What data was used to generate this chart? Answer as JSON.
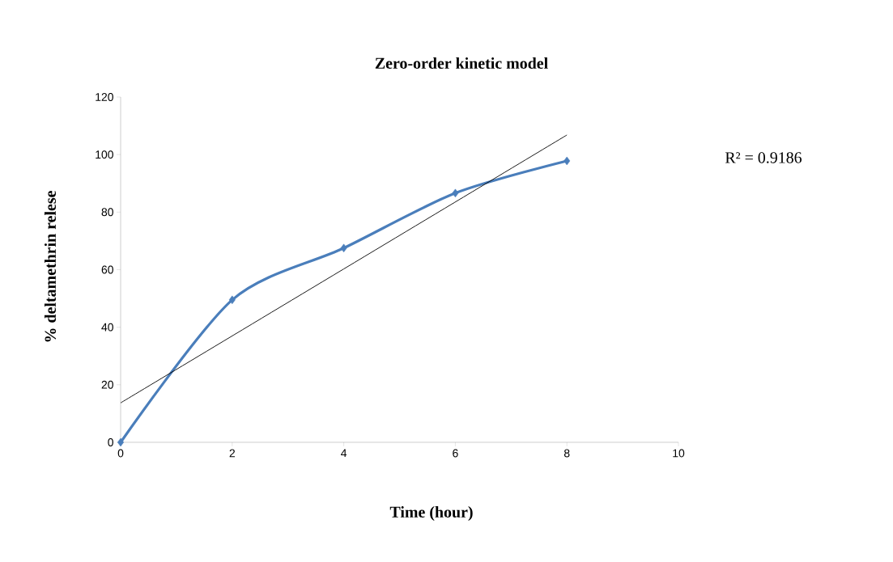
{
  "chart_data": {
    "type": "line",
    "title": "Zero-order  kinetic model",
    "xlabel": "Time (hour)",
    "ylabel": "% deltamethrin relese",
    "x": [
      0,
      2,
      4,
      6,
      8
    ],
    "series": [
      {
        "color": "#4a7ebb",
        "values": [
          0,
          49.5,
          67.5,
          86.6,
          97.8
        ],
        "marker": "diamond"
      },
      {
        "type": "line",
        "color": "#000000",
        "x": [
          0,
          8
        ],
        "values": [
          13.7,
          106.8
        ],
        "marker": "none"
      }
    ],
    "xlim": [
      0,
      10
    ],
    "xticks": [
      0,
      2,
      4,
      6,
      8,
      10
    ],
    "ylim": [
      0,
      120
    ],
    "yticks": [
      0,
      20,
      40,
      60,
      80,
      100,
      120
    ],
    "grid": false,
    "legend": false,
    "annotations": [
      "R² = 0.9186"
    ]
  }
}
